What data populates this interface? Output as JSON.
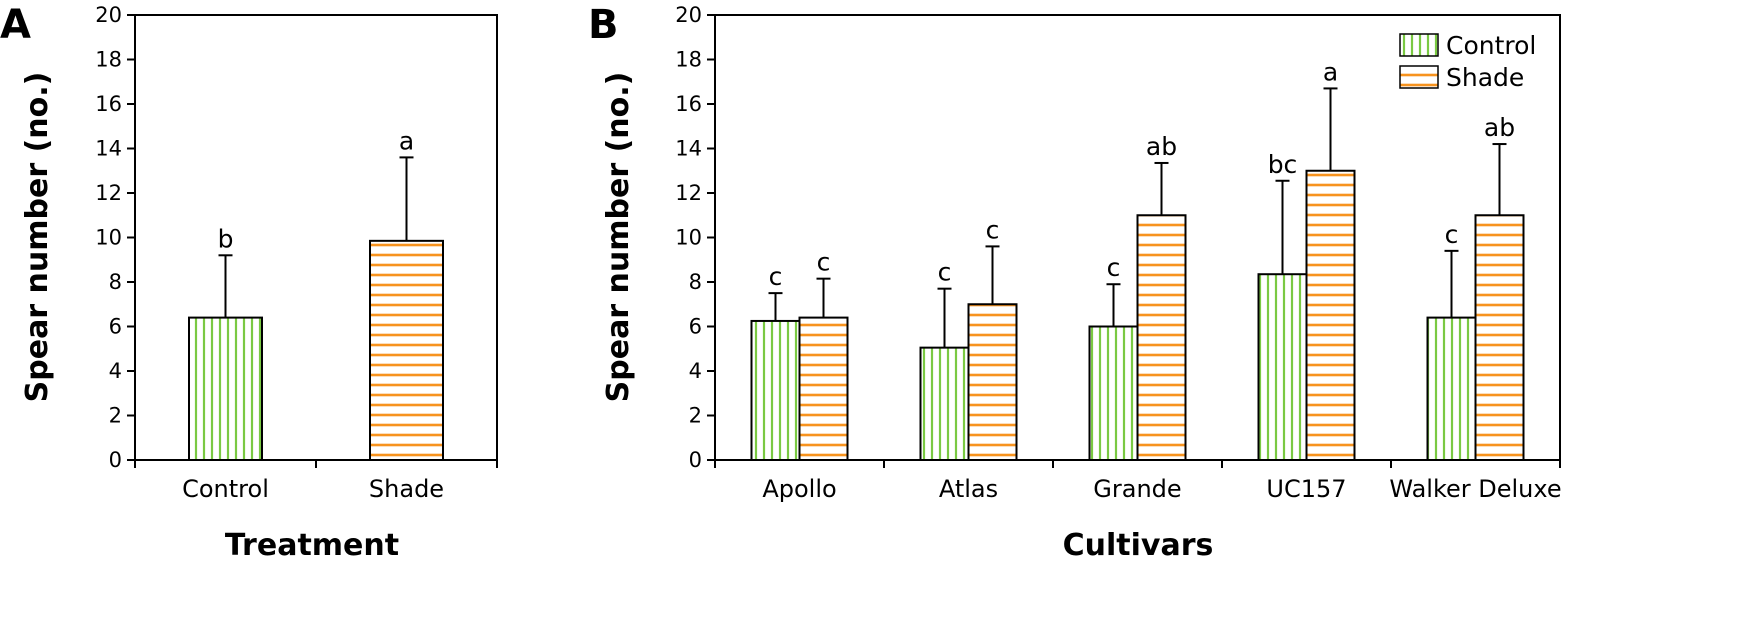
{
  "chart_data": [
    {
      "type": "bar",
      "panel_label": "A",
      "categories": [
        "Control",
        "Shade"
      ],
      "series": [
        {
          "values": [
            6.4,
            9.85
          ],
          "errors": [
            2.8,
            3.75
          ],
          "letters": [
            "b",
            "a"
          ],
          "pattern": "vertical-stripes"
        }
      ],
      "bar_colors": [
        "#7ac943",
        "#f7931e"
      ],
      "xlabel": "Treatment",
      "ylabel": "Spear number (no.)",
      "ylim": [
        0,
        20
      ],
      "yticks": [
        "0",
        "2",
        "4",
        "6",
        "8",
        "10",
        "12",
        "14",
        "16",
        "18",
        "20"
      ],
      "grid": false
    },
    {
      "type": "bar",
      "panel_label": "B",
      "categories": [
        "Apollo",
        "Atlas",
        "Grande",
        "UC157",
        "Walker Deluxe"
      ],
      "series": [
        {
          "name": "Control",
          "values": [
            6.25,
            5.05,
            6.0,
            8.35,
            6.4
          ],
          "errors": [
            1.25,
            2.65,
            1.9,
            4.2,
            3.0
          ],
          "letters": [
            "c",
            "c",
            "c",
            "bc",
            "c"
          ],
          "color": "#7ac943",
          "pattern": "vertical-stripes"
        },
        {
          "name": "Shade",
          "values": [
            6.4,
            7.0,
            11.0,
            13.0,
            11.0
          ],
          "errors": [
            1.75,
            2.6,
            2.35,
            3.7,
            3.2
          ],
          "letters": [
            "c",
            "c",
            "ab",
            "a",
            "ab"
          ],
          "color": "#f7931e",
          "pattern": "horizontal-stripes"
        }
      ],
      "xlabel": "Cultivars",
      "ylabel": "Spear number (no.)",
      "ylim": [
        0,
        20
      ],
      "yticks": [
        "0",
        "2",
        "4",
        "6",
        "8",
        "10",
        "12",
        "14",
        "16",
        "18",
        "20"
      ],
      "legend_position": "top-right",
      "grid": false
    }
  ]
}
